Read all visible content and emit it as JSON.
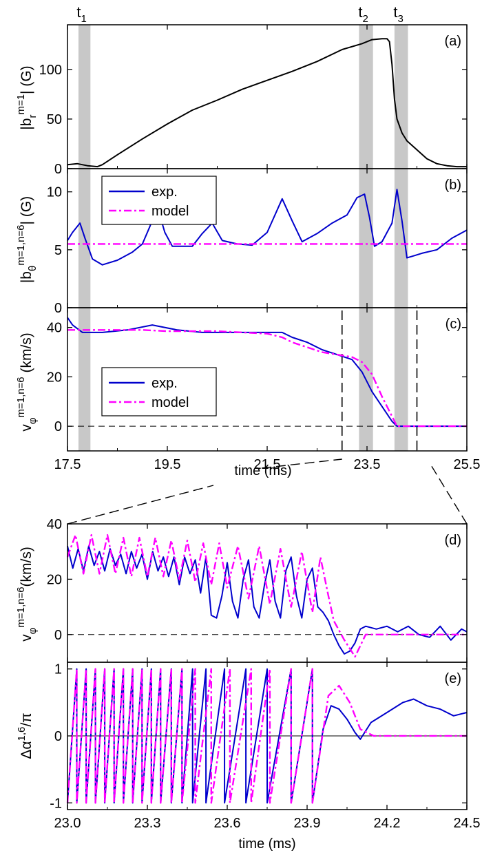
{
  "figure": {
    "xlabel_top": "time (ms)",
    "xlabel_bottom": "time (ms)",
    "shade_labels": [
      "t",
      "t",
      "t"
    ],
    "shade_subs": [
      "1",
      "2",
      "3"
    ]
  },
  "colors": {
    "exp": "#0000cc",
    "model": "#ff00ff",
    "shade": "#c8c8c8",
    "black": "#000000"
  },
  "chart_data": [
    {
      "id": "a",
      "type": "line",
      "panel_label": "(a)",
      "ylabel": "|b_r^{m=1}| (G)",
      "xlim": [
        17.5,
        25.5
      ],
      "ylim": [
        0,
        145
      ],
      "xticks": [
        "17.5",
        "19.5",
        "21.5",
        "23.5",
        "25.5"
      ],
      "yticks": [
        "0",
        "50",
        "100"
      ],
      "shaded": [
        [
          17.72,
          17.96
        ],
        [
          23.34,
          23.62
        ],
        [
          24.05,
          24.32
        ]
      ],
      "series": [
        {
          "x": [
            17.5,
            17.7,
            17.9,
            18.1,
            18.2,
            18.5,
            19.0,
            19.5,
            20.0,
            20.5,
            21.0,
            21.5,
            22.0,
            22.5,
            23.0,
            23.4,
            23.6,
            23.8,
            23.9,
            23.95,
            24.0,
            24.05,
            24.1,
            24.2,
            24.3,
            24.5,
            24.7,
            24.9,
            25.1,
            25.3,
            25.5
          ],
          "y": [
            4,
            5,
            3,
            2,
            4,
            14,
            30,
            45,
            59,
            69,
            80,
            89,
            98,
            108,
            120,
            126,
            130,
            131,
            131,
            128,
            105,
            70,
            50,
            36,
            28,
            19,
            10,
            5,
            3,
            2,
            2
          ]
        }
      ]
    },
    {
      "id": "b",
      "type": "line",
      "panel_label": "(b)",
      "ylabel": "|b_θ^{m=1,n=6}| (G)",
      "xlim": [
        17.5,
        25.5
      ],
      "ylim": [
        0,
        12
      ],
      "xticks": [
        "17.5",
        "19.5",
        "21.5",
        "23.5",
        "25.5"
      ],
      "yticks": [
        "0",
        "5",
        "10"
      ],
      "legend": [
        "exp.",
        "model"
      ],
      "shaded": [
        [
          17.72,
          17.96
        ],
        [
          23.34,
          23.62
        ],
        [
          24.05,
          24.32
        ]
      ],
      "series": [
        {
          "name": "exp.",
          "x": [
            17.5,
            17.6,
            17.75,
            17.85,
            18.0,
            18.2,
            18.5,
            18.8,
            19.0,
            19.15,
            19.3,
            19.45,
            19.6,
            20.0,
            20.2,
            20.4,
            20.6,
            20.9,
            21.2,
            21.5,
            21.8,
            22.0,
            22.2,
            22.5,
            22.8,
            23.1,
            23.3,
            23.45,
            23.55,
            23.65,
            23.8,
            24.0,
            24.1,
            24.2,
            24.3,
            24.45,
            24.6,
            24.9,
            25.2,
            25.5
          ],
          "y": [
            5.8,
            6.5,
            7.3,
            6.0,
            4.2,
            3.7,
            4.1,
            4.8,
            5.5,
            7.0,
            8.7,
            6.5,
            5.3,
            5.3,
            6.4,
            7.3,
            5.8,
            5.5,
            5.4,
            6.5,
            9.4,
            7.5,
            5.7,
            6.4,
            7.3,
            8.0,
            9.5,
            9.8,
            7.8,
            5.3,
            5.7,
            7.3,
            10.2,
            7.5,
            4.3,
            4.5,
            4.7,
            5.0,
            6.0,
            6.7
          ]
        },
        {
          "name": "model",
          "x": [
            17.5,
            25.5
          ],
          "y": [
            5.5,
            5.5
          ]
        }
      ]
    },
    {
      "id": "c",
      "type": "line",
      "panel_label": "(c)",
      "ylabel": "v_φ^{m=1,n=6} (km/s)",
      "xlim": [
        17.5,
        25.5
      ],
      "ylim": [
        -10,
        48
      ],
      "xticks": [
        "17.5",
        "19.5",
        "21.5",
        "23.5",
        "25.5"
      ],
      "yticks": [
        "0",
        "20",
        "40"
      ],
      "legend": [
        "exp.",
        "model"
      ],
      "shaded": [
        [
          17.72,
          17.96
        ],
        [
          23.34,
          23.62
        ],
        [
          24.05,
          24.32
        ]
      ],
      "vlines": [
        23.0,
        24.5
      ],
      "series": [
        {
          "name": "exp.",
          "x": [
            17.5,
            17.6,
            17.8,
            18.2,
            18.7,
            19.2,
            19.7,
            20.2,
            20.7,
            21.2,
            21.5,
            21.8,
            22.0,
            22.3,
            22.6,
            22.9,
            23.2,
            23.4,
            23.6,
            23.8,
            24.0,
            24.1,
            24.2,
            24.5,
            25.0,
            25.5
          ],
          "y": [
            44,
            41,
            38,
            38,
            39,
            41,
            39,
            38,
            38,
            38,
            38,
            38,
            36,
            34,
            31,
            29,
            27,
            22,
            14,
            8,
            2,
            0,
            0,
            0,
            0,
            0
          ]
        },
        {
          "name": "model",
          "x": [
            17.5,
            18.0,
            18.5,
            19.0,
            19.5,
            20.0,
            20.5,
            21.0,
            21.5,
            21.8,
            22.0,
            22.3,
            22.6,
            22.9,
            23.2,
            23.4,
            23.6,
            23.8,
            24.0,
            24.1,
            24.2,
            24.5,
            25.0,
            25.5
          ],
          "y": [
            39,
            39,
            39,
            39,
            38.5,
            38.5,
            38.5,
            38,
            37.5,
            36,
            34,
            32,
            30,
            29,
            28,
            26,
            21,
            12,
            4,
            0,
            0,
            0,
            0,
            0
          ]
        }
      ]
    },
    {
      "id": "d",
      "type": "line",
      "panel_label": "(d)",
      "ylabel": "v_φ^{m=1,n=6}(km/s)",
      "xlim": [
        23.0,
        24.5
      ],
      "ylim": [
        -10,
        40
      ],
      "xticks": [
        "23.0",
        "23.3",
        "23.6",
        "23.9",
        "24.2",
        "24.5"
      ],
      "yticks": [
        "0",
        "20",
        "40"
      ],
      "series": [
        {
          "name": "exp.",
          "x": [
            23.0,
            23.02,
            23.04,
            23.06,
            23.08,
            23.1,
            23.12,
            23.14,
            23.16,
            23.18,
            23.2,
            23.22,
            23.24,
            23.26,
            23.28,
            23.3,
            23.32,
            23.34,
            23.36,
            23.38,
            23.4,
            23.42,
            23.44,
            23.46,
            23.48,
            23.5,
            23.52,
            23.54,
            23.56,
            23.58,
            23.6,
            23.62,
            23.64,
            23.66,
            23.68,
            23.7,
            23.72,
            23.74,
            23.76,
            23.78,
            23.8,
            23.82,
            23.84,
            23.86,
            23.88,
            23.9,
            23.92,
            23.94,
            23.96,
            23.98,
            24.0,
            24.02,
            24.04,
            24.06,
            24.08,
            24.1,
            24.12,
            24.16,
            24.2,
            24.24,
            24.28,
            24.32,
            24.36,
            24.4,
            24.44,
            24.48,
            24.5
          ],
          "y": [
            32,
            24,
            31,
            23,
            32,
            25,
            30,
            23,
            31,
            25,
            29,
            22,
            30,
            24,
            29,
            20,
            30,
            23,
            28,
            21,
            28,
            18,
            28,
            22,
            27,
            15,
            28,
            7,
            6,
            14,
            26,
            12,
            6,
            20,
            27,
            10,
            6,
            18,
            27,
            12,
            6,
            23,
            28,
            14,
            6,
            20,
            24,
            10,
            8,
            5,
            0,
            -4,
            -7,
            -6,
            -3,
            2,
            3,
            2,
            3,
            1,
            3,
            0,
            -1,
            3,
            -2,
            2,
            1
          ]
        },
        {
          "name": "model",
          "x": [
            23.0,
            23.03,
            23.06,
            23.09,
            23.12,
            23.15,
            23.18,
            23.21,
            23.24,
            23.27,
            23.3,
            23.33,
            23.36,
            23.39,
            23.42,
            23.45,
            23.48,
            23.51,
            23.54,
            23.57,
            23.6,
            23.64,
            23.68,
            23.72,
            23.76,
            23.8,
            23.84,
            23.88,
            23.92,
            23.95,
            23.98,
            24.0,
            24.04,
            24.08,
            24.12,
            24.2,
            24.3,
            24.4,
            24.5
          ],
          "y": [
            28,
            36,
            22,
            36,
            22,
            36,
            22,
            35,
            21,
            35,
            21,
            35,
            21,
            34,
            20,
            34,
            19,
            33,
            18,
            33,
            17,
            32,
            13,
            32,
            11,
            31,
            10,
            30,
            8,
            28,
            14,
            5,
            -2,
            -8,
            0,
            0,
            0,
            0,
            0
          ]
        }
      ]
    },
    {
      "id": "e",
      "type": "line",
      "panel_label": "(e)",
      "ylabel": "Δα^{1,6}/π",
      "xlim": [
        23.0,
        24.5
      ],
      "ylim": [
        -1.1,
        1.1
      ],
      "xticks": [
        "23.0",
        "23.3",
        "23.6",
        "23.9",
        "24.2",
        "24.5"
      ],
      "yticks": [
        "-1",
        "0",
        "1"
      ],
      "series": [
        {
          "name": "exp.",
          "x": [
            23.0,
            23.035,
            23.035,
            23.07,
            23.07,
            23.105,
            23.105,
            23.14,
            23.14,
            23.175,
            23.175,
            23.21,
            23.21,
            23.245,
            23.245,
            23.28,
            23.28,
            23.315,
            23.315,
            23.35,
            23.35,
            23.39,
            23.39,
            23.43,
            23.43,
            23.47,
            23.47,
            23.52,
            23.52,
            23.59,
            23.59,
            23.67,
            23.67,
            23.75,
            23.75,
            23.84,
            23.84,
            23.92,
            23.92,
            23.96,
            23.99,
            24.02,
            24.05,
            24.08,
            24.1,
            24.14,
            24.2,
            24.26,
            24.3,
            24.35,
            24.4,
            24.45,
            24.5
          ],
          "y": [
            -1.0,
            1.0,
            -1.0,
            1.0,
            -1.0,
            1.0,
            -1.0,
            1.0,
            -1.0,
            1.0,
            -1.0,
            1.0,
            -1.0,
            1.0,
            -1.0,
            1.0,
            -1.0,
            1.0,
            -1.0,
            1.0,
            -1.0,
            1.0,
            -1.0,
            1.0,
            -1.0,
            1.0,
            -1.0,
            1.0,
            -1.0,
            1.0,
            -1.0,
            1.0,
            -1.0,
            1.0,
            -1.0,
            1.0,
            -1.0,
            1.0,
            -1.0,
            0.1,
            0.45,
            0.4,
            0.25,
            0.05,
            -0.05,
            0.2,
            0.35,
            0.5,
            0.55,
            0.45,
            0.4,
            0.3,
            0.35
          ]
        },
        {
          "name": "model",
          "x": [
            23.0,
            23.035,
            23.035,
            23.07,
            23.07,
            23.105,
            23.105,
            23.14,
            23.14,
            23.175,
            23.175,
            23.21,
            23.21,
            23.245,
            23.245,
            23.28,
            23.28,
            23.315,
            23.315,
            23.35,
            23.35,
            23.39,
            23.39,
            23.43,
            23.43,
            23.48,
            23.48,
            23.54,
            23.54,
            23.61,
            23.61,
            23.69,
            23.69,
            23.76,
            23.76,
            23.84,
            23.84,
            23.92,
            23.92,
            23.95,
            23.98,
            24.02,
            24.06,
            24.1,
            24.15,
            24.3,
            24.5
          ],
          "y": [
            -1.0,
            1.0,
            -1.0,
            1.0,
            -1.0,
            1.0,
            -1.0,
            1.0,
            -1.0,
            1.0,
            -1.0,
            1.0,
            -1.0,
            1.0,
            -1.0,
            1.0,
            -1.0,
            1.0,
            -1.0,
            1.0,
            -1.0,
            1.0,
            -1.0,
            1.0,
            -1.0,
            1.0,
            -1.0,
            1.0,
            -1.0,
            1.0,
            -1.0,
            1.0,
            -1.0,
            1.0,
            -1.0,
            1.0,
            -1.0,
            1.0,
            -1.0,
            -0.2,
            0.6,
            0.75,
            0.5,
            0.1,
            0.0,
            0.0,
            0.0
          ]
        }
      ]
    }
  ]
}
